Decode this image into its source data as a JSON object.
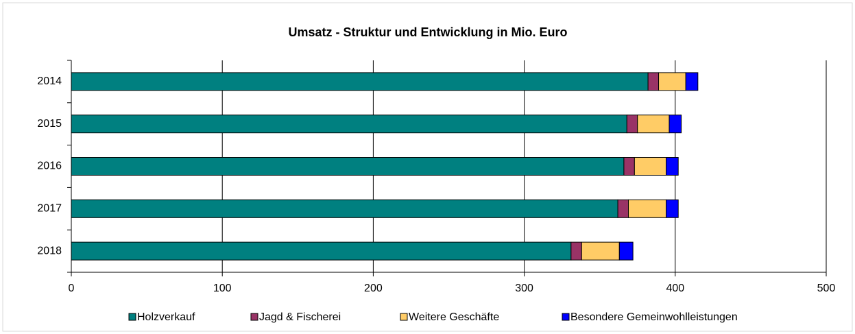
{
  "chart_data": {
    "type": "stacked_bar_horizontal",
    "title": "Umsatz - Struktur und Entwicklung in Mio. Euro",
    "categories": [
      "2014",
      "2015",
      "2016",
      "2017",
      "2018"
    ],
    "series": [
      {
        "name": "Holzverkauf",
        "color": "#008080",
        "values": [
          382,
          368,
          366,
          362,
          331
        ]
      },
      {
        "name": "Jagd & Fischerei",
        "color": "#993366",
        "values": [
          7,
          7,
          7,
          7,
          7
        ]
      },
      {
        "name": "Weitere Geschäfte",
        "color": "#ffcc66",
        "values": [
          18,
          21,
          21,
          25,
          25
        ]
      },
      {
        "name": "Besondere Gemeinwohlleistungen",
        "color": "#0000ff",
        "values": [
          8,
          8,
          8,
          8,
          9
        ]
      }
    ],
    "xlim": [
      0,
      500
    ],
    "xticks": [
      0,
      100,
      200,
      300,
      400,
      500
    ],
    "grid": true,
    "legend": "bottom"
  }
}
